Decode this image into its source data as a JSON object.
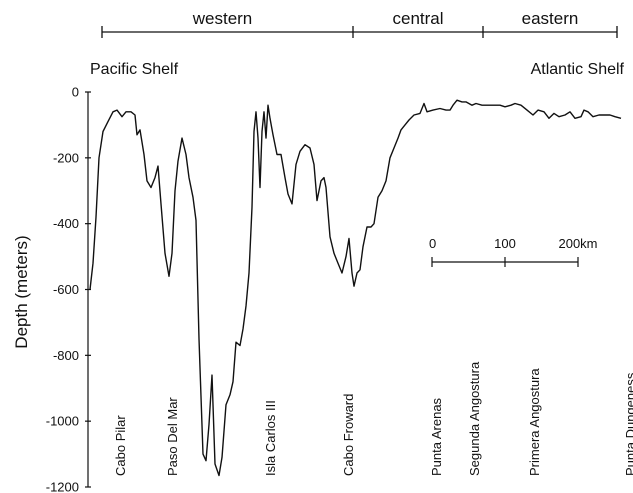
{
  "chart_data": {
    "type": "line",
    "ylabel": "Depth (meters)",
    "ylim": [
      -1200,
      0
    ],
    "y_ticks": [
      "0",
      "-200",
      "-400",
      "-600",
      "-800",
      "-1000",
      "-1200"
    ],
    "y_tick_values": [
      0,
      -200,
      -400,
      -600,
      -800,
      -1000,
      -1200
    ],
    "x_unit": "km",
    "x_range": [
      0,
      580
    ],
    "regions": [
      {
        "label": "western",
        "x0": 12,
        "x1": 263
      },
      {
        "label": "central",
        "x0": 263,
        "x1": 393
      },
      {
        "label": "eastern",
        "x0": 393,
        "x1": 527
      }
    ],
    "shelf_labels": {
      "left": "Pacific Shelf",
      "right": "Atlantic Shelf"
    },
    "scale_bar": {
      "labels": [
        "0",
        "100",
        "200km"
      ],
      "values": [
        0,
        100,
        200
      ]
    },
    "locations": [
      {
        "label": "Cabo Pilar",
        "x": 35
      },
      {
        "label": "Paso Del Mar",
        "x": 87
      },
      {
        "label": "Isla Carlos III",
        "x": 185
      },
      {
        "label": "Cabo Froward",
        "x": 263
      },
      {
        "label": "Punta Arenas",
        "x": 351
      },
      {
        "label": "Segunda Angostura",
        "x": 389
      },
      {
        "label": "Primera Angostura",
        "x": 449
      },
      {
        "label": "Punta Dungeness",
        "x": 545
      }
    ],
    "series": [
      {
        "values": [
          [
            0,
            -600
          ],
          [
            3,
            -520
          ],
          [
            6,
            -380
          ],
          [
            9,
            -200
          ],
          [
            13,
            -120
          ],
          [
            18,
            -90
          ],
          [
            23,
            -60
          ],
          [
            27,
            -55
          ],
          [
            32,
            -75
          ],
          [
            36,
            -60
          ],
          [
            41,
            -60
          ],
          [
            45,
            -70
          ],
          [
            47,
            -130
          ],
          [
            50,
            -115
          ],
          [
            54,
            -190
          ],
          [
            57,
            -270
          ],
          [
            61,
            -290
          ],
          [
            65,
            -260
          ],
          [
            68,
            -225
          ],
          [
            71,
            -340
          ],
          [
            75,
            -490
          ],
          [
            79,
            -560
          ],
          [
            82,
            -490
          ],
          [
            85,
            -300
          ],
          [
            88,
            -210
          ],
          [
            92,
            -140
          ],
          [
            96,
            -190
          ],
          [
            99,
            -260
          ],
          [
            103,
            -320
          ],
          [
            106,
            -390
          ],
          [
            109,
            -750
          ],
          [
            113,
            -1100
          ],
          [
            116,
            -1120
          ],
          [
            119,
            -1010
          ],
          [
            122,
            -860
          ],
          [
            125,
            -1130
          ],
          [
            129,
            -1165
          ],
          [
            132,
            -1110
          ],
          [
            136,
            -950
          ],
          [
            140,
            -920
          ],
          [
            143,
            -880
          ],
          [
            146,
            -760
          ],
          [
            150,
            -770
          ],
          [
            153,
            -720
          ],
          [
            156,
            -650
          ],
          [
            159,
            -550
          ],
          [
            162,
            -350
          ],
          [
            164,
            -120
          ],
          [
            166,
            -60
          ],
          [
            168,
            -140
          ],
          [
            170,
            -290
          ],
          [
            172,
            -120
          ],
          [
            174,
            -60
          ],
          [
            176,
            -140
          ],
          [
            178,
            -40
          ],
          [
            180,
            -80
          ],
          [
            183,
            -130
          ],
          [
            187,
            -190
          ],
          [
            191,
            -190
          ],
          [
            195,
            -260
          ],
          [
            198,
            -310
          ],
          [
            202,
            -340
          ],
          [
            206,
            -220
          ],
          [
            210,
            -180
          ],
          [
            215,
            -160
          ],
          [
            220,
            -170
          ],
          [
            224,
            -220
          ],
          [
            227,
            -330
          ],
          [
            231,
            -270
          ],
          [
            234,
            -260
          ],
          [
            236,
            -290
          ],
          [
            240,
            -440
          ],
          [
            244,
            -490
          ],
          [
            248,
            -520
          ],
          [
            252,
            -550
          ],
          [
            256,
            -500
          ],
          [
            259,
            -445
          ],
          [
            262,
            -550
          ],
          [
            264,
            -590
          ],
          [
            267,
            -550
          ],
          [
            270,
            -540
          ],
          [
            273,
            -470
          ],
          [
            277,
            -410
          ],
          [
            281,
            -410
          ],
          [
            284,
            -400
          ],
          [
            288,
            -320
          ],
          [
            292,
            -300
          ],
          [
            296,
            -270
          ],
          [
            300,
            -200
          ],
          [
            304,
            -170
          ],
          [
            308,
            -140
          ],
          [
            311,
            -115
          ],
          [
            315,
            -100
          ],
          [
            319,
            -85
          ],
          [
            324,
            -70
          ],
          [
            330,
            -65
          ],
          [
            334,
            -35
          ],
          [
            337,
            -60
          ],
          [
            343,
            -55
          ],
          [
            350,
            -50
          ],
          [
            356,
            -55
          ],
          [
            360,
            -55
          ],
          [
            363,
            -40
          ],
          [
            367,
            -25
          ],
          [
            372,
            -30
          ],
          [
            376,
            -30
          ],
          [
            382,
            -40
          ],
          [
            386,
            -35
          ],
          [
            392,
            -40
          ],
          [
            398,
            -40
          ],
          [
            404,
            -40
          ],
          [
            410,
            -40
          ],
          [
            415,
            -45
          ],
          [
            421,
            -40
          ],
          [
            425,
            -35
          ],
          [
            431,
            -40
          ],
          [
            437,
            -55
          ],
          [
            443,
            -70
          ],
          [
            448,
            -55
          ],
          [
            454,
            -60
          ],
          [
            459,
            -80
          ],
          [
            464,
            -65
          ],
          [
            469,
            -75
          ],
          [
            475,
            -70
          ],
          [
            480,
            -60
          ],
          [
            485,
            -80
          ],
          [
            491,
            -75
          ],
          [
            494,
            -55
          ],
          [
            498,
            -60
          ],
          [
            503,
            -75
          ],
          [
            509,
            -70
          ],
          [
            514,
            -70
          ],
          [
            520,
            -70
          ],
          [
            525,
            -75
          ],
          [
            531,
            -80
          ]
        ]
      }
    ]
  }
}
